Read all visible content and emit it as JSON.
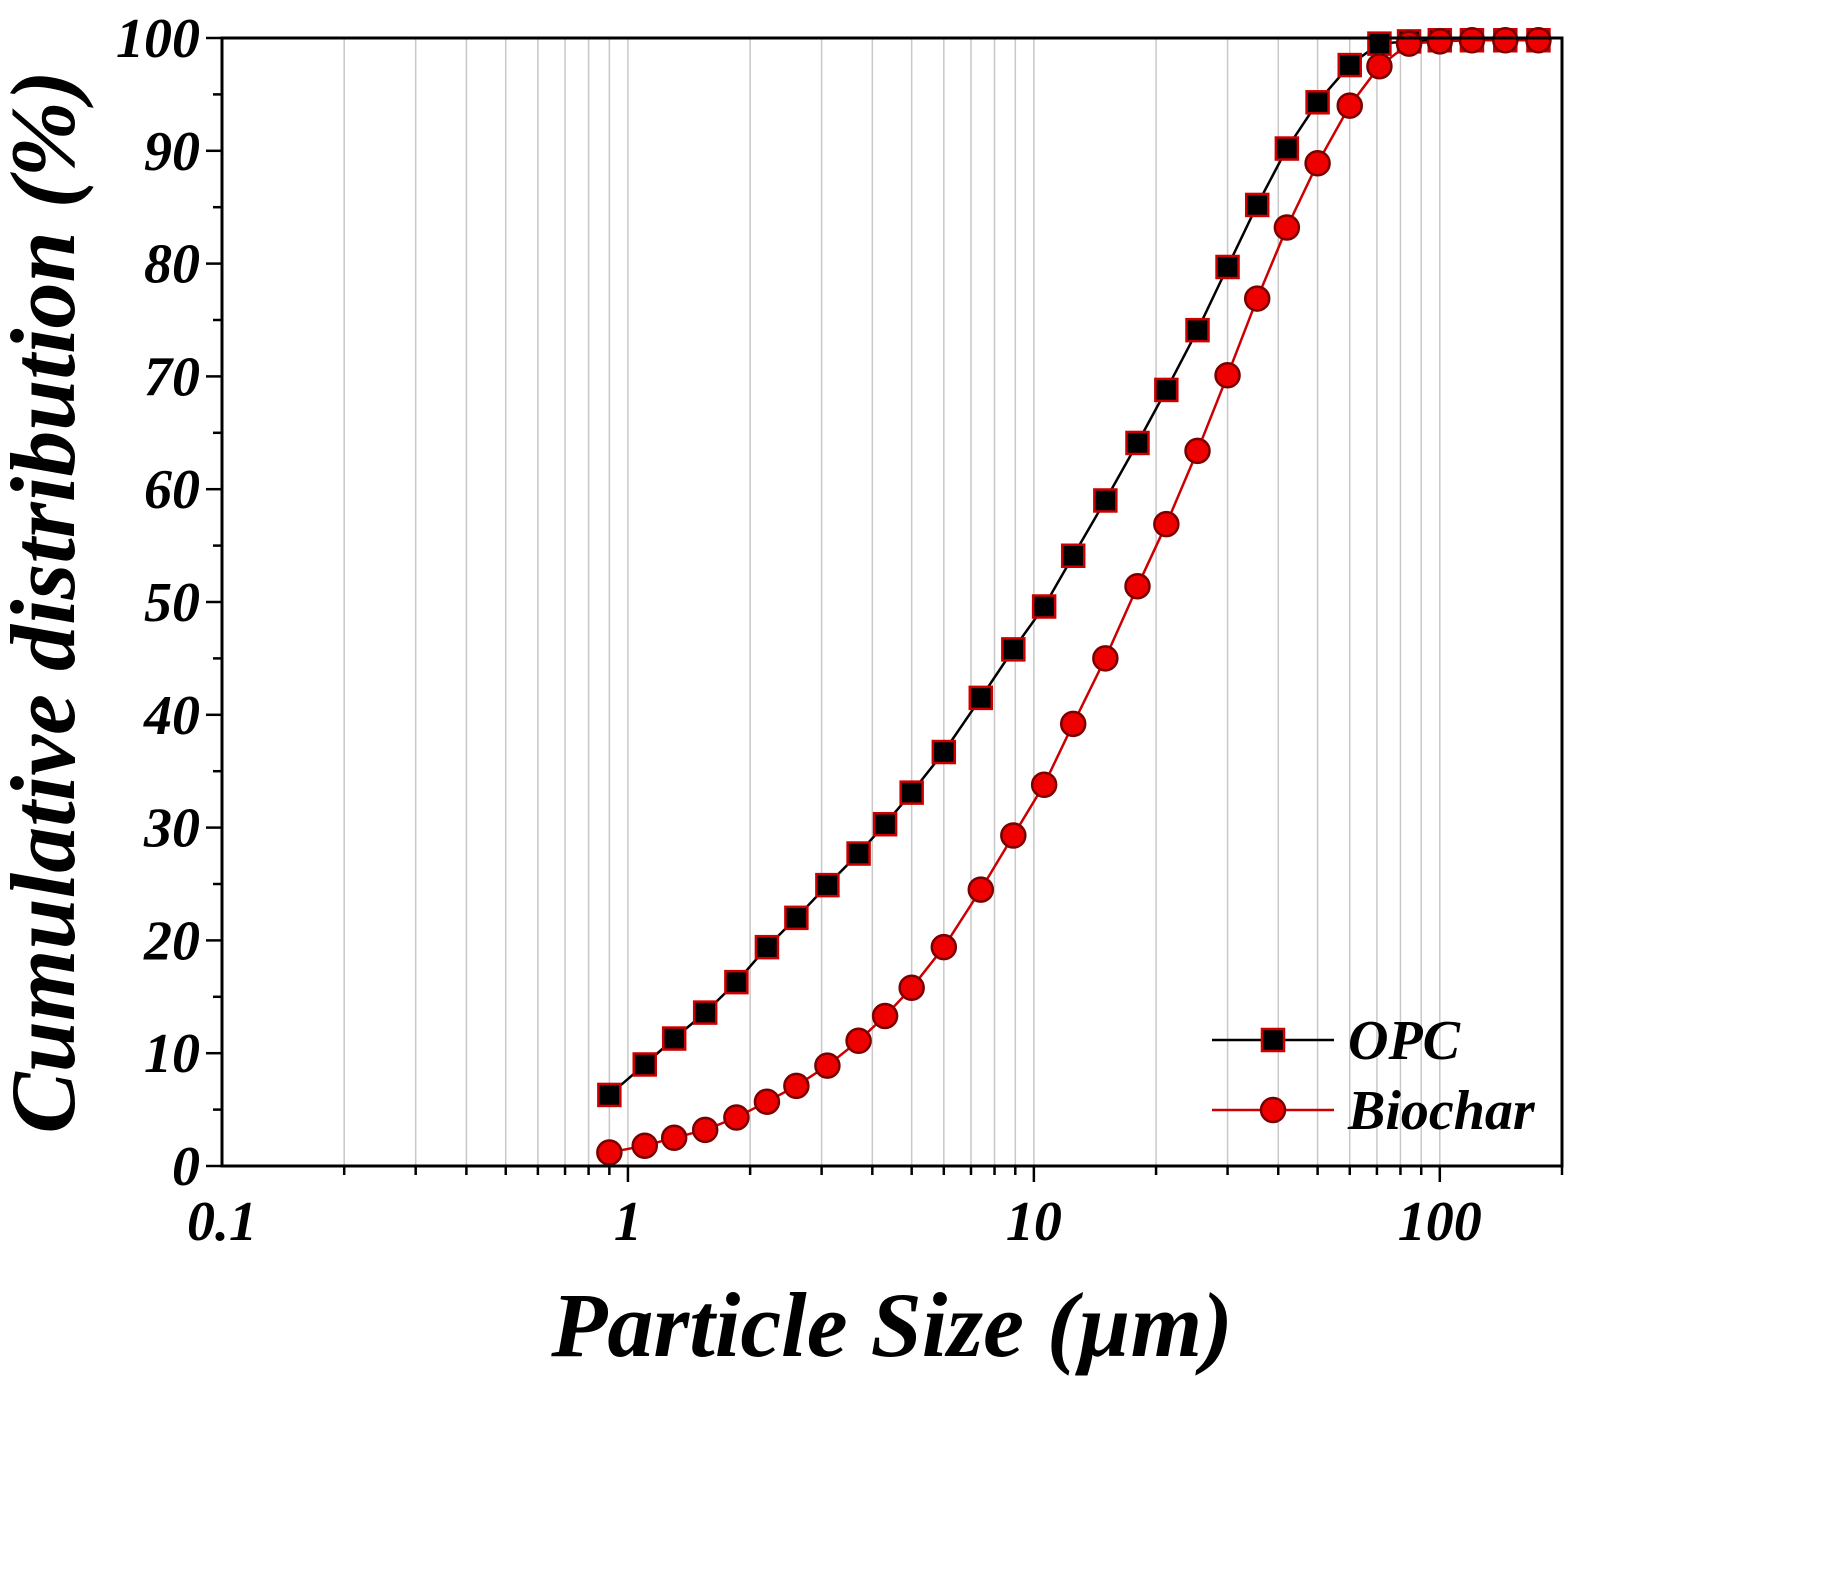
{
  "chart_data": {
    "type": "scatter",
    "xlabel": "Particle Size (µm)",
    "ylabel": "Cumulative distribution (%)",
    "x_scale": "log",
    "xlim": [
      0.1,
      200
    ],
    "ylim": [
      0,
      100
    ],
    "x_ticks": [
      "0.1",
      "1",
      "10",
      "100"
    ],
    "y_ticks": [
      "0",
      "10",
      "20",
      "30",
      "40",
      "50",
      "60",
      "70",
      "80",
      "90",
      "100"
    ],
    "grid": "vertical minor log gridlines",
    "legend_position": "bottom-right",
    "series": [
      {
        "name": "OPC",
        "color": "#000000",
        "marker": "square",
        "marker_fill": "#000000",
        "marker_edge": "#cc0000",
        "points": [
          [
            0.9,
            6.3
          ],
          [
            1.1,
            9.0
          ],
          [
            1.3,
            11.3
          ],
          [
            1.55,
            13.6
          ],
          [
            1.85,
            16.3
          ],
          [
            2.2,
            19.4
          ],
          [
            2.6,
            22.0
          ],
          [
            3.1,
            24.9
          ],
          [
            3.7,
            27.7
          ],
          [
            4.3,
            30.3
          ],
          [
            5.0,
            33.1
          ],
          [
            6.0,
            36.7
          ],
          [
            7.4,
            41.5
          ],
          [
            8.9,
            45.8
          ],
          [
            10.6,
            49.6
          ],
          [
            12.5,
            54.1
          ],
          [
            15.0,
            59.0
          ],
          [
            18.0,
            64.1
          ],
          [
            21.2,
            68.8
          ],
          [
            25.3,
            74.1
          ],
          [
            30.0,
            79.7
          ],
          [
            35.5,
            85.2
          ],
          [
            42.0,
            90.2
          ],
          [
            50.0,
            94.3
          ],
          [
            60.0,
            97.6
          ],
          [
            71.0,
            99.5
          ],
          [
            84.0,
            99.7
          ],
          [
            100.0,
            99.8
          ],
          [
            120.0,
            99.8
          ],
          [
            145.0,
            99.8
          ],
          [
            175.0,
            99.8
          ]
        ]
      },
      {
        "name": "Biochar",
        "color": "#cc0000",
        "marker": "circle",
        "marker_fill": "#ee0000",
        "marker_edge": "#7a0000",
        "points": [
          [
            0.9,
            1.2
          ],
          [
            1.1,
            1.8
          ],
          [
            1.3,
            2.5
          ],
          [
            1.55,
            3.2
          ],
          [
            1.85,
            4.3
          ],
          [
            2.2,
            5.7
          ],
          [
            2.6,
            7.1
          ],
          [
            3.1,
            8.9
          ],
          [
            3.7,
            11.1
          ],
          [
            4.3,
            13.3
          ],
          [
            5.0,
            15.8
          ],
          [
            6.0,
            19.4
          ],
          [
            7.4,
            24.5
          ],
          [
            8.9,
            29.3
          ],
          [
            10.6,
            33.8
          ],
          [
            12.5,
            39.2
          ],
          [
            15.0,
            45.0
          ],
          [
            18.0,
            51.4
          ],
          [
            21.2,
            56.9
          ],
          [
            25.3,
            63.4
          ],
          [
            30.0,
            70.1
          ],
          [
            35.5,
            76.9
          ],
          [
            42.0,
            83.2
          ],
          [
            50.0,
            88.9
          ],
          [
            60.0,
            94.0
          ],
          [
            71.0,
            97.5
          ],
          [
            84.0,
            99.5
          ],
          [
            100.0,
            99.7
          ],
          [
            120.0,
            99.8
          ],
          [
            145.0,
            99.8
          ],
          [
            175.0,
            99.8
          ]
        ]
      }
    ]
  }
}
